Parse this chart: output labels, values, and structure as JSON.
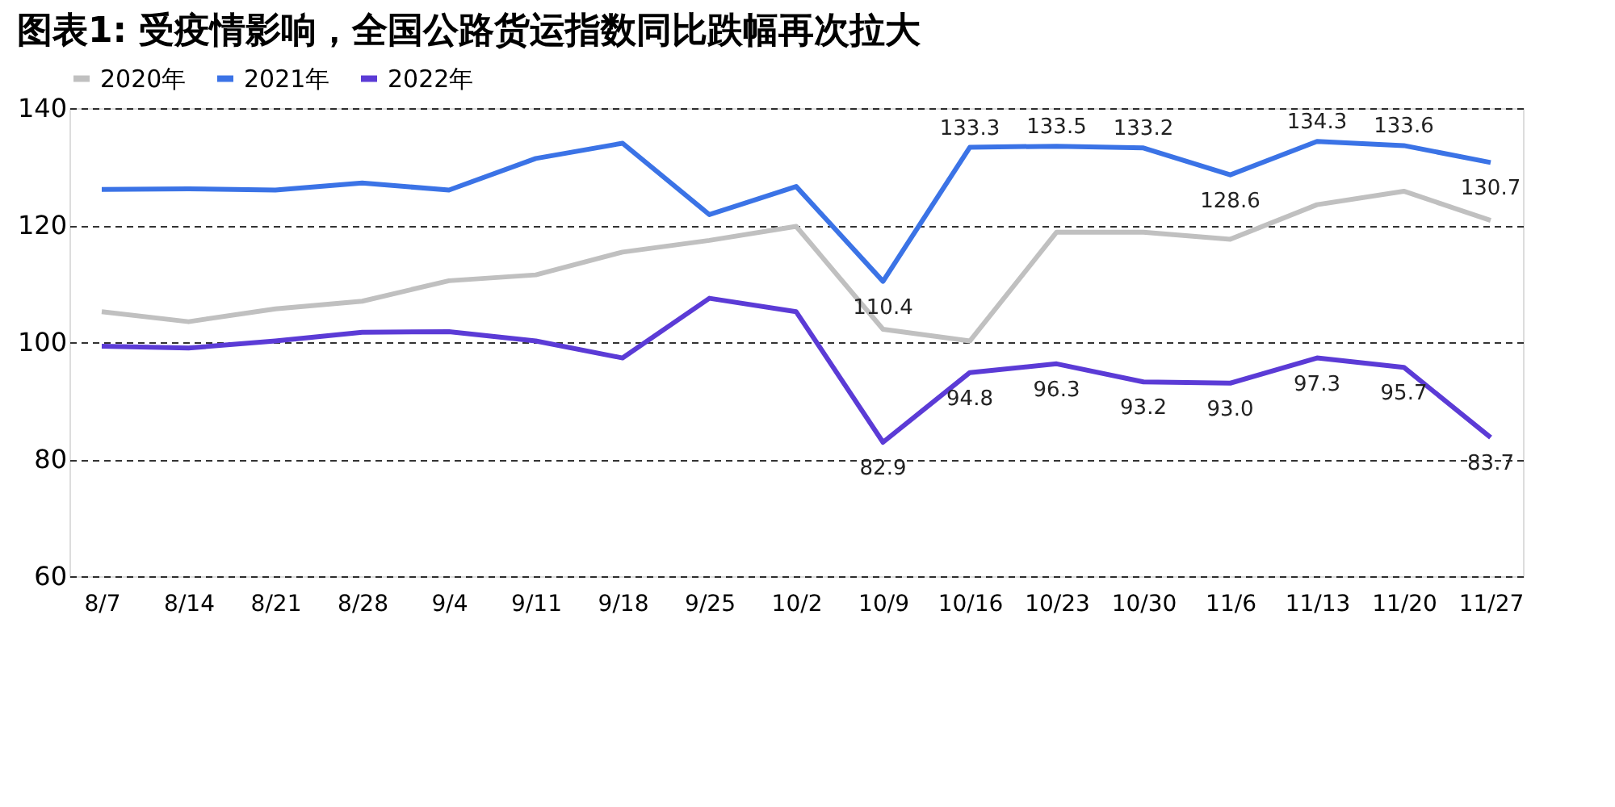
{
  "chart_data": {
    "type": "line",
    "title": "图表1: 受疫情影响，全国公路货运指数同比跌幅再次拉大",
    "categories": [
      "8/7",
      "8/14",
      "8/21",
      "8/28",
      "9/4",
      "9/11",
      "9/18",
      "9/25",
      "10/2",
      "10/9",
      "10/16",
      "10/23",
      "10/30",
      "11/6",
      "11/13",
      "11/20",
      "11/27"
    ],
    "series": [
      {
        "name": "2020年",
        "color": "#c0c0c0",
        "values": [
          105.2,
          103.5,
          105.7,
          107.0,
          110.5,
          111.5,
          115.4,
          117.4,
          119.8,
          102.2,
          100.2,
          118.8,
          118.8,
          117.6,
          123.5,
          125.8,
          120.8
        ]
      },
      {
        "name": "2021年",
        "color": "#3b73e6",
        "values": [
          126.1,
          126.2,
          126.0,
          127.2,
          126.0,
          131.4,
          134.0,
          121.8,
          126.6,
          110.4,
          133.3,
          133.5,
          133.2,
          128.6,
          134.3,
          133.6,
          130.7
        ],
        "value_labels": [
          null,
          null,
          null,
          null,
          null,
          null,
          null,
          null,
          null,
          "110.4",
          "133.3",
          "133.5",
          "133.2",
          "128.6",
          "134.3",
          "133.6",
          "130.7"
        ]
      },
      {
        "name": "2022年",
        "color": "#5b3bd6",
        "values": [
          99.3,
          99.0,
          100.2,
          101.7,
          101.8,
          100.2,
          97.3,
          107.5,
          105.2,
          82.9,
          94.8,
          96.3,
          93.2,
          93.0,
          97.3,
          95.7,
          83.7
        ],
        "value_labels": [
          null,
          null,
          null,
          null,
          null,
          null,
          null,
          null,
          null,
          "82.9",
          "94.8",
          "96.3",
          "93.2",
          "93.0",
          "97.3",
          "95.7",
          "83.7"
        ]
      }
    ],
    "ylim": [
      60,
      140
    ],
    "yticks": [
      60,
      80,
      100,
      120,
      140
    ],
    "grid": "y",
    "legend": "top left",
    "line_style": "solid",
    "marker": "none"
  }
}
